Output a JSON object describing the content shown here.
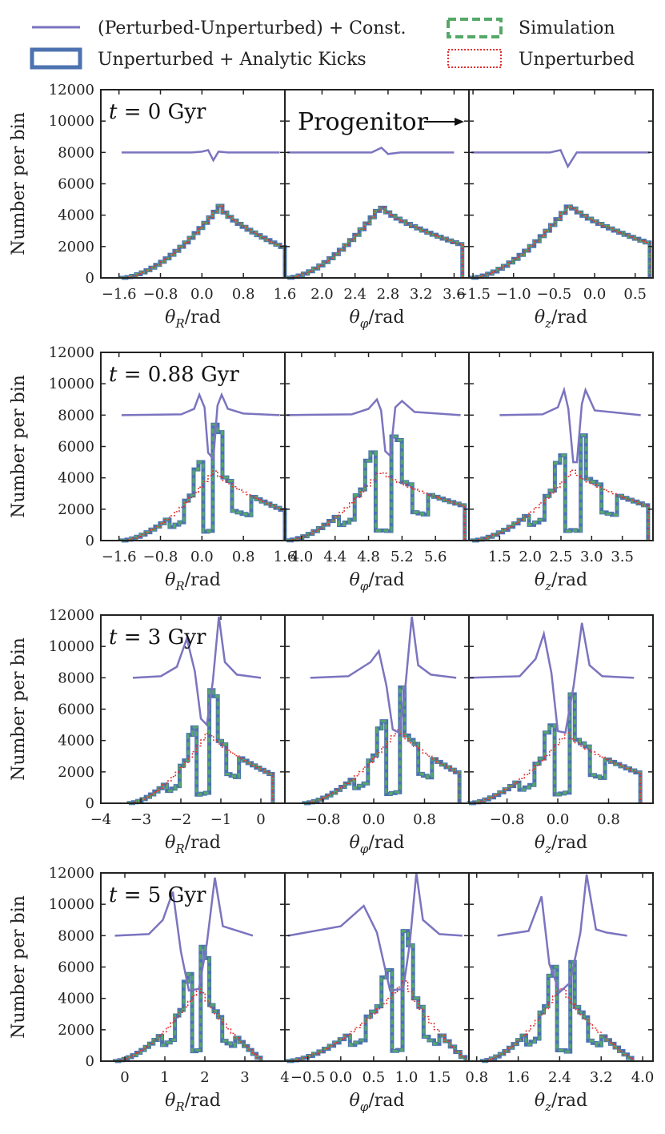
{
  "legend": {
    "perturbed_diff": "(Perturbed-Unperturbed) + Const.",
    "simulation": "Simulation",
    "analytic": "Unperturbed + Analytic Kicks",
    "unperturbed": "Unperturbed"
  },
  "colors": {
    "perturbed_diff": "#7b74bf",
    "simulation": "#55a868",
    "analytic": "#4c72b0",
    "unperturbed": "#e0302f",
    "axis": "#222222"
  },
  "ylabel": "Number per bin",
  "progenitor_label": "Progenitor",
  "chart_data": [
    {
      "type": "line",
      "row": 0,
      "col": 0,
      "time_label": "t = 0 Gyr",
      "time_pre": "t = 0",
      "time_unit": "Gyr",
      "xlabel_sym": "θ",
      "xlabel_sub": "R",
      "xlabel_unit": "/rad",
      "xlim": [
        -1.95,
        1.6
      ],
      "ylim": [
        0,
        12000
      ],
      "xticks": [
        "−1.6",
        "−0.8",
        "0.0",
        "0.8",
        "1.6"
      ],
      "xtick_values": [
        -1.6,
        -0.8,
        0.0,
        0.8,
        1.6
      ],
      "yticks": [
        "0",
        "2000",
        "4000",
        "6000",
        "8000",
        "10000",
        "12000"
      ],
      "ytick_values": [
        0,
        2000,
        4000,
        6000,
        8000,
        10000,
        12000
      ],
      "hist_range": [
        -1.55,
        1.6
      ],
      "peak": 0.35,
      "peak_val": 4600,
      "edge_val": 1900,
      "dips": [],
      "const_line": [
        [
          -1.55,
          8000
        ],
        [
          -0.2,
          8000
        ],
        [
          0.0,
          8050
        ],
        [
          0.12,
          8150
        ],
        [
          0.22,
          7500
        ],
        [
          0.32,
          8050
        ],
        [
          0.5,
          8000
        ],
        [
          1.5,
          8000
        ]
      ]
    },
    {
      "type": "line",
      "row": 0,
      "col": 1,
      "xlabel_sym": "θ",
      "xlabel_sub": "φ",
      "xlabel_unit": "/rad",
      "xlim": [
        1.55,
        3.78
      ],
      "ylim": [
        0,
        12000
      ],
      "xticks": [
        "2.0",
        "2.4",
        "2.8",
        "3.2",
        "3.6"
      ],
      "xtick_values": [
        2.0,
        2.4,
        2.8,
        3.2,
        3.6
      ],
      "hist_range": [
        1.58,
        3.7
      ],
      "peak": 2.72,
      "peak_val": 4600,
      "edge_val": 2100,
      "dips": [],
      "const_line": [
        [
          1.58,
          8000
        ],
        [
          2.6,
          8000
        ],
        [
          2.72,
          8300
        ],
        [
          2.8,
          7900
        ],
        [
          2.95,
          8000
        ],
        [
          3.6,
          8000
        ]
      ]
    },
    {
      "type": "line",
      "row": 0,
      "col": 2,
      "xlabel_sym": "θ",
      "xlabel_sub": "z",
      "xlabel_unit": "/rad",
      "xlim": [
        -1.55,
        0.72
      ],
      "ylim": [
        0,
        12000
      ],
      "xticks": [
        "−1.5",
        "−1.0",
        "−0.5",
        "0.0",
        "0.5"
      ],
      "xtick_values": [
        -1.5,
        -1.0,
        -0.5,
        0.0,
        0.5
      ],
      "hist_range": [
        -1.52,
        0.68
      ],
      "peak": -0.3,
      "peak_val": 4700,
      "edge_val": 2200,
      "dips": [],
      "const_line": [
        [
          -1.52,
          8000
        ],
        [
          -0.55,
          8000
        ],
        [
          -0.42,
          8150
        ],
        [
          -0.33,
          7100
        ],
        [
          -0.22,
          8000
        ],
        [
          0.68,
          8000
        ]
      ]
    },
    {
      "type": "line",
      "row": 1,
      "col": 0,
      "time_label": "t = 0.88 Gyr",
      "time_pre": "t = 0.88",
      "time_unit": "Gyr",
      "xlabel_sym": "θ",
      "xlabel_sub": "R",
      "xlabel_unit": "/rad",
      "xlim": [
        -1.95,
        1.6
      ],
      "ylim": [
        0,
        12000
      ],
      "xticks": [
        "−1.6",
        "−0.8",
        "0.0",
        "0.8",
        "1.6"
      ],
      "xtick_values": [
        -1.6,
        -0.8,
        0.0,
        0.8,
        1.6
      ],
      "hist_range": [
        -1.55,
        1.6
      ],
      "peak": 0.25,
      "peak_val": 4500,
      "edge_val": 1900,
      "dips": [
        [
          0.12,
          4.5
        ]
      ],
      "const_line": [
        [
          -1.55,
          8000
        ],
        [
          -0.4,
          8050
        ],
        [
          -0.15,
          8400
        ],
        [
          -0.05,
          9300
        ],
        [
          0.05,
          8500
        ],
        [
          0.12,
          5600
        ],
        [
          0.22,
          5200
        ],
        [
          0.3,
          8600
        ],
        [
          0.38,
          9300
        ],
        [
          0.5,
          8400
        ],
        [
          0.8,
          8100
        ],
        [
          1.5,
          8000
        ]
      ]
    },
    {
      "type": "line",
      "row": 1,
      "col": 1,
      "xlabel_sym": "θ",
      "xlabel_sub": "φ",
      "xlabel_unit": "/rad",
      "xlim": [
        3.8,
        6.0
      ],
      "ylim": [
        0,
        12000
      ],
      "xticks": [
        "4.0",
        "4.4",
        "4.8",
        "5.2",
        "5.6"
      ],
      "xtick_values": [
        4.0,
        4.4,
        4.8,
        5.2,
        5.6
      ],
      "hist_range": [
        3.82,
        5.95
      ],
      "peak": 4.95,
      "peak_val": 4500,
      "edge_val": 2200,
      "dips": [
        [
          4.98,
          4.4
        ]
      ],
      "const_line": [
        [
          3.82,
          8000
        ],
        [
          4.6,
          8050
        ],
        [
          4.8,
          8400
        ],
        [
          4.9,
          9000
        ],
        [
          4.95,
          8300
        ],
        [
          5.0,
          5700
        ],
        [
          5.06,
          5400
        ],
        [
          5.12,
          8500
        ],
        [
          5.2,
          8900
        ],
        [
          5.35,
          8200
        ],
        [
          5.9,
          8000
        ]
      ]
    },
    {
      "type": "line",
      "row": 1,
      "col": 2,
      "xlabel_sym": "θ",
      "xlabel_sub": "z",
      "xlabel_unit": "/rad",
      "xlim": [
        1.0,
        4.0
      ],
      "ylim": [
        0,
        12000
      ],
      "xticks": [
        "1.5",
        "2.0",
        "2.5",
        "3.0",
        "3.5"
      ],
      "xtick_values": [
        1.5,
        2.0,
        2.5,
        3.0,
        3.5
      ],
      "hist_range": [
        1.05,
        3.92
      ],
      "peak": 2.7,
      "peak_val": 4500,
      "edge_val": 2200,
      "dips": [
        [
          2.68,
          4.5
        ]
      ],
      "const_line": [
        [
          1.5,
          8000
        ],
        [
          2.2,
          8050
        ],
        [
          2.45,
          8500
        ],
        [
          2.55,
          9600
        ],
        [
          2.62,
          8400
        ],
        [
          2.7,
          5000
        ],
        [
          2.76,
          5000
        ],
        [
          2.84,
          8700
        ],
        [
          2.9,
          9600
        ],
        [
          3.05,
          8300
        ],
        [
          3.8,
          8000
        ]
      ]
    },
    {
      "type": "line",
      "row": 2,
      "col": 0,
      "time_label": "t = 3 Gyr",
      "time_pre": "t = 3",
      "time_unit": "Gyr",
      "xlabel_sym": "θ",
      "xlabel_sub": "R",
      "xlabel_unit": "/rad",
      "xlim": [
        -4.0,
        0.6
      ],
      "ylim": [
        0,
        12000
      ],
      "xticks": [
        "−4",
        "−3",
        "−2",
        "−1",
        "0"
      ],
      "xtick_values": [
        -4,
        -3,
        -2,
        -1,
        0
      ],
      "hist_range": [
        -3.3,
        0.3
      ],
      "peak": -1.3,
      "peak_val": 4600,
      "edge_val": 1800,
      "dips": [
        [
          -1.45,
          12
        ]
      ],
      "const_line": [
        [
          -3.2,
          8000
        ],
        [
          -2.5,
          8100
        ],
        [
          -2.1,
          8700
        ],
        [
          -1.85,
          10500
        ],
        [
          -1.65,
          8400
        ],
        [
          -1.5,
          5400
        ],
        [
          -1.35,
          5000
        ],
        [
          -1.2,
          7800
        ],
        [
          -1.05,
          11900
        ],
        [
          -0.9,
          9000
        ],
        [
          -0.6,
          8200
        ],
        [
          0.0,
          8000
        ]
      ]
    },
    {
      "type": "line",
      "row": 2,
      "col": 1,
      "xlabel_sym": "θ",
      "xlabel_sub": "φ",
      "xlabel_unit": "/rad",
      "xlim": [
        -1.4,
        1.5
      ],
      "ylim": [
        0,
        12000
      ],
      "xticks": [
        "−0.8",
        "0.0",
        "0.8"
      ],
      "xtick_values": [
        -0.8,
        0.0,
        0.8
      ],
      "hist_range": [
        -1.1,
        1.35
      ],
      "peak": 0.4,
      "peak_val": 4800,
      "edge_val": 1900,
      "dips": [
        [
          0.3,
          12
        ]
      ],
      "const_line": [
        [
          -1.0,
          8000
        ],
        [
          -0.4,
          8100
        ],
        [
          -0.05,
          9000
        ],
        [
          0.08,
          9700
        ],
        [
          0.2,
          7500
        ],
        [
          0.3,
          4700
        ],
        [
          0.4,
          4500
        ],
        [
          0.5,
          7500
        ],
        [
          0.6,
          11900
        ],
        [
          0.7,
          8800
        ],
        [
          0.9,
          8200
        ],
        [
          1.3,
          8000
        ]
      ]
    },
    {
      "type": "line",
      "row": 2,
      "col": 2,
      "xlabel_sym": "θ",
      "xlabel_sub": "z",
      "xlabel_unit": "/rad",
      "xlim": [
        -1.4,
        1.5
      ],
      "ylim": [
        0,
        12000
      ],
      "xticks": [
        "−0.8",
        "0.0",
        "0.8"
      ],
      "xtick_values": [
        -0.8,
        0.0,
        0.8
      ],
      "hist_range": [
        -1.4,
        1.3
      ],
      "peak": 0.15,
      "peak_val": 4500,
      "edge_val": 1900,
      "dips": [
        [
          0.05,
          12
        ]
      ],
      "const_line": [
        [
          -1.4,
          8000
        ],
        [
          -0.6,
          8100
        ],
        [
          -0.35,
          9200
        ],
        [
          -0.22,
          10800
        ],
        [
          -0.1,
          8300
        ],
        [
          0.0,
          4600
        ],
        [
          0.12,
          4500
        ],
        [
          0.25,
          7500
        ],
        [
          0.38,
          11500
        ],
        [
          0.5,
          8800
        ],
        [
          0.7,
          8100
        ],
        [
          1.2,
          8000
        ]
      ]
    },
    {
      "type": "line",
      "row": 3,
      "col": 0,
      "time_label": "t = 5 Gyr",
      "time_pre": "t = 5",
      "time_unit": "Gyr",
      "xlabel_sym": "θ",
      "xlabel_sub": "R",
      "xlabel_unit": "/rad",
      "xlim": [
        -0.6,
        4.0
      ],
      "ylim": [
        0,
        12000
      ],
      "xticks": [
        "0",
        "1",
        "2",
        "3",
        "4"
      ],
      "xtick_values": [
        0,
        1,
        2,
        3,
        4
      ],
      "hist_range": [
        -0.25,
        3.4
      ],
      "peak": 1.9,
      "peak_val": 4800,
      "edge_val": 100,
      "dips": [
        [
          1.8,
          12
        ]
      ],
      "const_line": [
        [
          -0.25,
          8000
        ],
        [
          0.6,
          8100
        ],
        [
          0.95,
          9000
        ],
        [
          1.2,
          10800
        ],
        [
          1.4,
          7000
        ],
        [
          1.6,
          4500
        ],
        [
          1.85,
          4600
        ],
        [
          2.05,
          7500
        ],
        [
          2.25,
          11700
        ],
        [
          2.45,
          8600
        ],
        [
          3.2,
          8000
        ]
      ]
    },
    {
      "type": "line",
      "row": 3,
      "col": 1,
      "xlabel_sym": "θ",
      "xlabel_sub": "φ",
      "xlabel_unit": "/rad",
      "xlim": [
        -0.85,
        1.95
      ],
      "ylim": [
        0,
        12000
      ],
      "xticks": [
        "−0.5",
        "0.0",
        "0.5",
        "1.0",
        "1.5"
      ],
      "xtick_values": [
        -0.5,
        0.0,
        0.5,
        1.0,
        1.5
      ],
      "hist_range": [
        -0.82,
        1.9
      ],
      "peak": 1.0,
      "peak_val": 5200,
      "edge_val": 100,
      "dips": [
        [
          0.85,
          12
        ]
      ],
      "const_line": [
        [
          -0.8,
          8000
        ],
        [
          0.0,
          8600
        ],
        [
          0.35,
          9900
        ],
        [
          0.55,
          8200
        ],
        [
          0.75,
          4500
        ],
        [
          0.95,
          4600
        ],
        [
          1.05,
          7500
        ],
        [
          1.15,
          12000
        ],
        [
          1.25,
          9000
        ],
        [
          1.5,
          8100
        ],
        [
          1.85,
          8000
        ]
      ]
    },
    {
      "type": "line",
      "row": 3,
      "col": 2,
      "xlabel_sym": "θ",
      "xlabel_sub": "z",
      "xlabel_unit": "/rad",
      "xlim": [
        0.65,
        4.2
      ],
      "ylim": [
        0,
        12000
      ],
      "xticks": [
        "0.8",
        "1.6",
        "2.4",
        "3.2",
        "4.0"
      ],
      "xtick_values": [
        0.8,
        1.6,
        2.4,
        3.2,
        4.0
      ],
      "hist_range": [
        0.9,
        3.8
      ],
      "peak": 2.45,
      "peak_val": 4900,
      "edge_val": 100,
      "dips": [
        [
          2.45,
          12
        ]
      ],
      "const_line": [
        [
          1.2,
          8000
        ],
        [
          1.8,
          8300
        ],
        [
          2.05,
          10500
        ],
        [
          2.2,
          6200
        ],
        [
          2.4,
          4400
        ],
        [
          2.6,
          5000
        ],
        [
          2.8,
          8200
        ],
        [
          2.92,
          11900
        ],
        [
          3.1,
          8400
        ],
        [
          3.3,
          8200
        ],
        [
          3.7,
          8000
        ]
      ]
    }
  ]
}
